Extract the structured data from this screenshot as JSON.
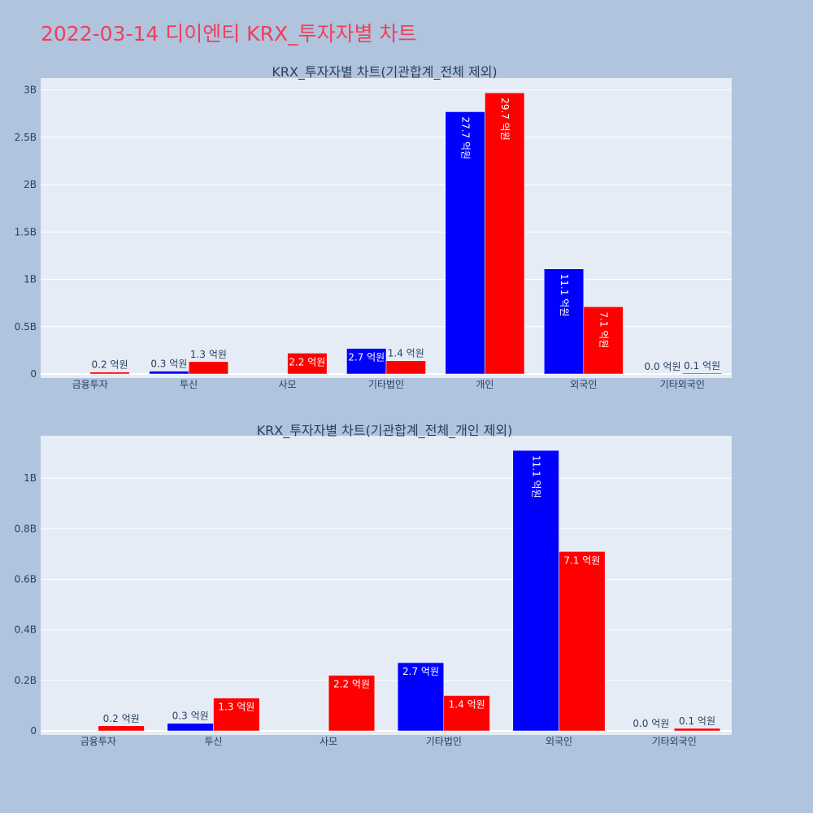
{
  "page": {
    "title": "2022-03-14 디이엔티 KRX_투자자별 차트",
    "background": "#b0c4de",
    "title_color": "#ef3f5a",
    "plot_background": "#e5ecf6"
  },
  "chart_data": [
    {
      "type": "bar",
      "title": "KRX_투자자별 차트(기관합계_전체 제외)",
      "categories": [
        "금융투자",
        "투신",
        "사모",
        "기타법인",
        "개인",
        "외국인",
        "기타외국인"
      ],
      "series": [
        {
          "color": "#0000ff",
          "values": [
            0,
            30000000,
            0,
            270000000,
            2770000000,
            1110000000,
            0
          ],
          "labels": [
            "",
            "0.3 억원",
            "",
            "2.7 억원",
            "27.7 억원",
            "11.1 억원",
            "0.0 억원"
          ]
        },
        {
          "color": "#ff0000",
          "values": [
            20000000,
            130000000,
            220000000,
            140000000,
            2970000000,
            710000000,
            10000000
          ],
          "labels": [
            "0.2 억원",
            "1.3 억원",
            "2.2 억원",
            "1.4 억원",
            "29.7 억원",
            "7.1 억원",
            "0.1 억원"
          ]
        }
      ],
      "yticks": [
        0,
        500000000,
        1000000000,
        1500000000,
        2000000000,
        2500000000,
        3000000000
      ],
      "ytick_labels": [
        "0",
        "0.5B",
        "1B",
        "1.5B",
        "2B",
        "2.5B",
        "3B"
      ],
      "ylim": [
        0,
        3126000000
      ],
      "grid": true,
      "legend": "none",
      "barmode": "group"
    },
    {
      "type": "bar",
      "title": "KRX_투자자별 차트(기관합계_전체_개인 제외)",
      "categories": [
        "금융투자",
        "투신",
        "사모",
        "기타법인",
        "외국인",
        "기타외국인"
      ],
      "series": [
        {
          "color": "#0000ff",
          "values": [
            0,
            30000000,
            0,
            270000000,
            1110000000,
            0
          ],
          "labels": [
            "",
            "0.3 억원",
            "",
            "2.7 억원",
            "11.1 억원",
            "0.0 억원"
          ]
        },
        {
          "color": "#ff0000",
          "values": [
            20000000,
            130000000,
            220000000,
            140000000,
            710000000,
            10000000
          ],
          "labels": [
            "0.2 억원",
            "1.3 억원",
            "2.2 억원",
            "1.4 억원",
            "7.1 억원",
            "0.1 억원"
          ]
        }
      ],
      "yticks": [
        0,
        200000000,
        400000000,
        600000000,
        800000000,
        1000000000
      ],
      "ytick_labels": [
        "0",
        "0.2B",
        "0.4B",
        "0.6B",
        "0.8B",
        "1B"
      ],
      "ylim": [
        0,
        1168000000
      ],
      "grid": true,
      "legend": "none",
      "barmode": "group"
    }
  ]
}
